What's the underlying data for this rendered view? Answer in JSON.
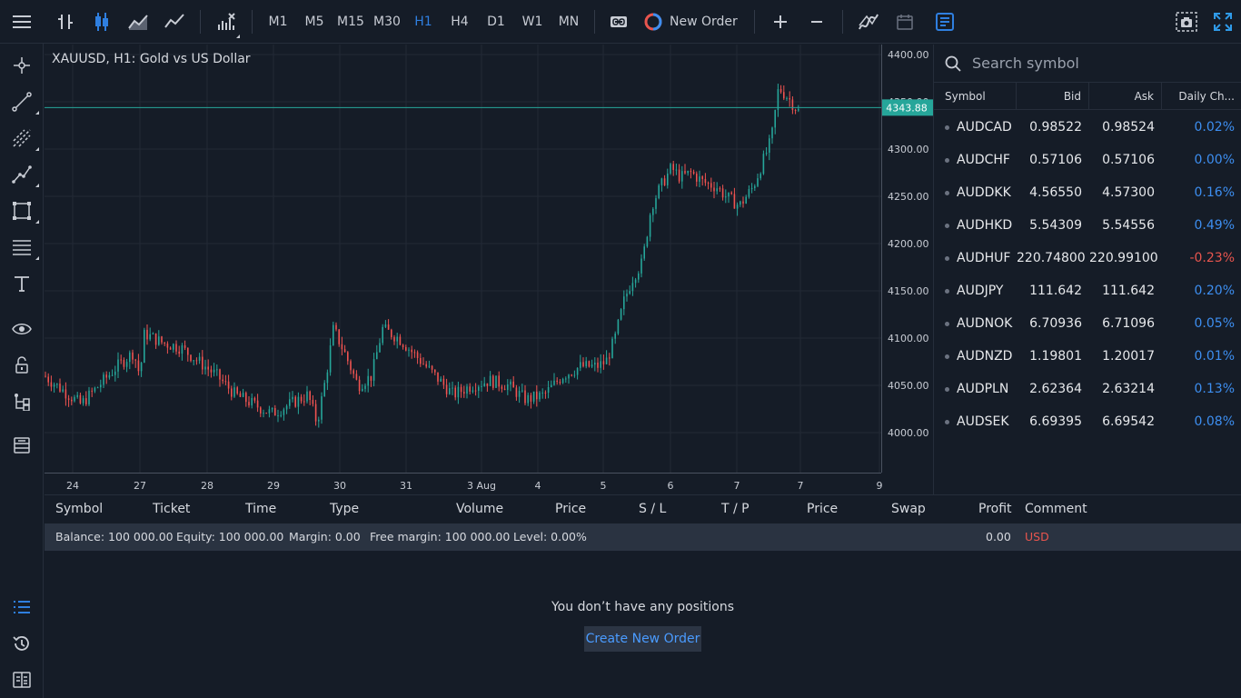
{
  "toolbar": {
    "timeframes": [
      "M1",
      "M5",
      "M15",
      "M30",
      "H1",
      "H4",
      "D1",
      "W1",
      "MN"
    ],
    "active_timeframe": "H1",
    "new_order_label": "New Order"
  },
  "chart": {
    "title": "XAUUSD, H1: Gold vs US Dollar",
    "current_price": "4343.88",
    "price_labels": [
      "4400.00",
      "4350.00",
      "4300.00",
      "4250.00",
      "4200.00",
      "4150.00",
      "4100.00",
      "4050.00",
      "4000.00"
    ],
    "date_labels": [
      "24",
      "27",
      "28",
      "29",
      "30",
      "31",
      "3 Aug",
      "4",
      "5",
      "6",
      "7",
      "7",
      "9"
    ],
    "colors": {
      "up": "#26a69a",
      "down": "#ef5350",
      "price_line": "#26a69a",
      "price_tag_bg": "#26a69a"
    }
  },
  "watchlist": {
    "search_placeholder": "Search symbol",
    "headers": {
      "symbol": "Symbol",
      "bid": "Bid",
      "ask": "Ask",
      "change": "Daily Ch..."
    },
    "rows": [
      {
        "symbol": "AUDCAD",
        "bid": "0.98522",
        "ask": "0.98524",
        "change": "0.02%",
        "dir": "pos"
      },
      {
        "symbol": "AUDCHF",
        "bid": "0.57106",
        "ask": "0.57106",
        "change": "0.00%",
        "dir": "pos"
      },
      {
        "symbol": "AUDDKK",
        "bid": "4.56550",
        "ask": "4.57300",
        "change": "0.16%",
        "dir": "pos"
      },
      {
        "symbol": "AUDHKD",
        "bid": "5.54309",
        "ask": "5.54556",
        "change": "0.49%",
        "dir": "pos"
      },
      {
        "symbol": "AUDHUF",
        "bid": "220.74800",
        "ask": "220.99100",
        "change": "-0.23%",
        "dir": "neg"
      },
      {
        "symbol": "AUDJPY",
        "bid": "111.642",
        "ask": "111.642",
        "change": "0.20%",
        "dir": "pos"
      },
      {
        "symbol": "AUDNOK",
        "bid": "6.70936",
        "ask": "6.71096",
        "change": "0.05%",
        "dir": "pos"
      },
      {
        "symbol": "AUDNZD",
        "bid": "1.19801",
        "ask": "1.20017",
        "change": "0.01%",
        "dir": "pos"
      },
      {
        "symbol": "AUDPLN",
        "bid": "2.62364",
        "ask": "2.63214",
        "change": "0.13%",
        "dir": "pos"
      },
      {
        "symbol": "AUDSEK",
        "bid": "6.69395",
        "ask": "6.69542",
        "change": "0.08%",
        "dir": "pos"
      }
    ]
  },
  "trade": {
    "headers": {
      "symbol": "Symbol",
      "ticket": "Ticket",
      "time": "Time",
      "type": "Type",
      "volume": "Volume",
      "price": "Price",
      "sl": "S / L",
      "tp": "T / P",
      "price2": "Price",
      "swap": "Swap",
      "profit": "Profit",
      "comment": "Comment"
    },
    "balance": "Balance: 100 000.00",
    "equity": "Equity: 100 000.00",
    "margin": "Margin: 0.00",
    "free_margin": "Free margin: 100 000.00",
    "level": "Level: 0.00%",
    "profit_total": "0.00",
    "currency": "USD",
    "empty_message": "You don’t have any positions",
    "create_button": "Create New Order"
  }
}
